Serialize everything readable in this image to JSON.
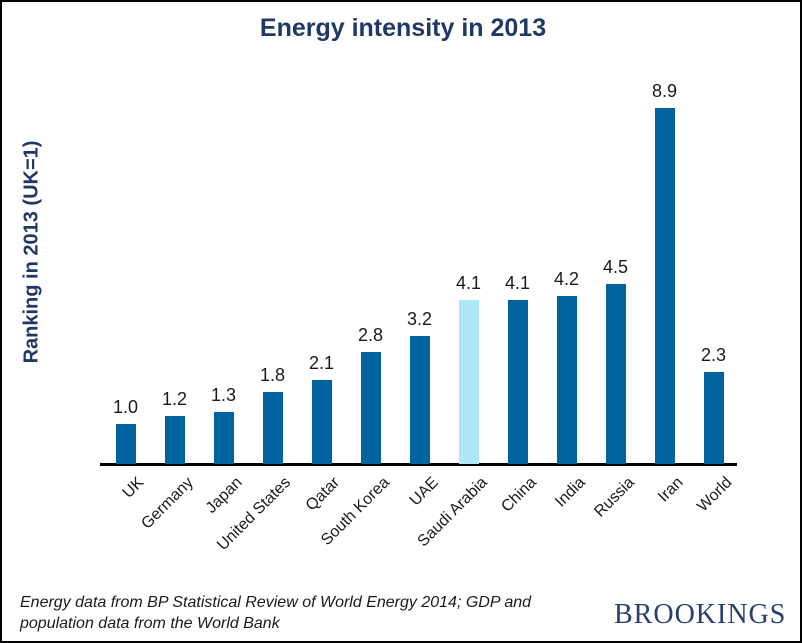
{
  "window": {
    "background": "#ffffff",
    "border_color": "#000000"
  },
  "chart_data": {
    "type": "bar",
    "title": "Energy intensity in 2013",
    "ylabel": "Ranking in 2013 (UK=1)",
    "xlabel": "",
    "categories": [
      "UK",
      "Germany",
      "Japan",
      "United States",
      "Qatar",
      "South Korea",
      "UAE",
      "Saudi Arabia",
      "China",
      "India",
      "Russia",
      "Iran",
      "World"
    ],
    "values": [
      1.0,
      1.2,
      1.3,
      1.8,
      2.1,
      2.8,
      3.2,
      4.1,
      4.1,
      4.2,
      4.5,
      8.9,
      2.3
    ],
    "data_labels": [
      "1.0",
      "1.2",
      "1.3",
      "1.8",
      "2.1",
      "2.8",
      "3.2",
      "4.1",
      "4.1",
      "4.2",
      "4.5",
      "8.9",
      "2.3"
    ],
    "highlighted_category": "Saudi Arabia",
    "highlight_index": 7,
    "ylim": [
      0,
      9
    ],
    "grid": false,
    "legend": false,
    "colors": {
      "bar": "#0063a0",
      "highlight": "#aee6fa",
      "title": "#1f3864",
      "axis": "#000000",
      "label": "#1a1a1a"
    }
  },
  "footer": {
    "source_note": "Energy data from BP Statistical Review of World Energy 2014; GDP and population data from the World Bank",
    "logo_text": "BROOKINGS",
    "logo_color": "#2a3f6f"
  }
}
